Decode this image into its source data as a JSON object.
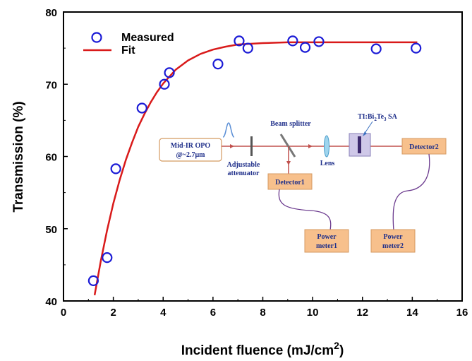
{
  "chart_data": {
    "type": "scatter",
    "xlabel": "Incident fluence (mJ/cm",
    "xlabel_sup": "2",
    "xlabel_end": ")",
    "ylabel": "Transmission (%)",
    "xlim": [
      0,
      16
    ],
    "ylim": [
      40,
      80
    ],
    "xticks": [
      0,
      2,
      4,
      6,
      8,
      10,
      12,
      14,
      16
    ],
    "yticks": [
      40,
      50,
      60,
      70,
      80
    ],
    "grid": false,
    "legend": {
      "placement": "top-left"
    },
    "series": [
      {
        "name": "Measured",
        "kind": "markers",
        "color": "#1b1bd6",
        "x": [
          1.2,
          1.75,
          2.1,
          3.15,
          4.05,
          4.25,
          6.2,
          7.05,
          7.4,
          9.2,
          9.7,
          10.25,
          12.55,
          14.15
        ],
        "y": [
          42.8,
          46.0,
          58.3,
          66.7,
          70.0,
          71.6,
          72.8,
          76.0,
          75.0,
          76.0,
          75.1,
          75.9,
          74.9,
          75.0
        ]
      },
      {
        "name": "Fit",
        "kind": "line",
        "color": "#d91a1a",
        "x": [
          1.25,
          1.5,
          1.75,
          2.0,
          2.25,
          2.5,
          2.75,
          3.0,
          3.25,
          3.5,
          3.75,
          4.0,
          4.5,
          5.0,
          5.5,
          6.0,
          6.5,
          7.0,
          7.5,
          8.0,
          9.0,
          10.0,
          11.0,
          12.0,
          13.0,
          14.2
        ],
        "y": [
          40.8,
          45.6,
          49.8,
          53.5,
          56.7,
          59.5,
          61.9,
          64.1,
          65.9,
          67.5,
          68.9,
          70.1,
          72.0,
          73.3,
          74.2,
          74.8,
          75.2,
          75.5,
          75.6,
          75.7,
          75.8,
          75.8,
          75.8,
          75.8,
          75.8,
          75.8
        ]
      }
    ],
    "inset": {
      "source_label_1": "Mid-IR OPO",
      "source_label_2": "@~2.7μm",
      "attenuator_label_1": "Adjustable",
      "attenuator_label_2": "attenuator",
      "splitter_label": "Beam splitter",
      "lens_label": "Lens",
      "sa_label_prefix": "TI:Bi",
      "sa_label_sub1": "2",
      "sa_label_mid": "Te",
      "sa_label_sub2": "3",
      "sa_label_suffix": " SA",
      "detector1_label": "Detector1",
      "detector2_label": "Detector2",
      "meter1_label_1": "Power",
      "meter1_label_2": "meter1",
      "meter2_label_1": "Power",
      "meter2_label_2": "meter2",
      "box_fill": "#f7c08c",
      "beam_color": "#c0504d",
      "text_color": "#1f2f8a"
    }
  }
}
